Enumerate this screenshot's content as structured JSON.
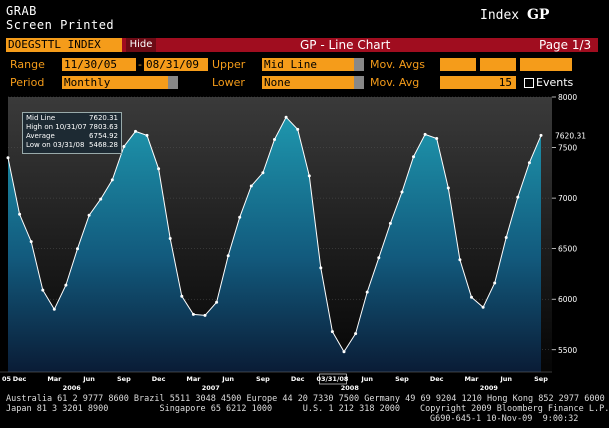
{
  "header": {
    "line1": "GRAB",
    "line2": "Screen Printed",
    "index_label": "Index",
    "function_code": "GP"
  },
  "toolbar": {
    "ticker": "DOEGSTTL INDEX",
    "hide_button": "Hide",
    "title": "GP - Line Chart",
    "page": "Page 1/3"
  },
  "controls": {
    "range_label": "Range",
    "range_start": "11/30/05",
    "range_end": "08/31/09",
    "upper_label": "Upper",
    "upper_value": "Mid Line",
    "mov_avgs_label": "Mov. Avgs",
    "period_label": "Period",
    "period_value": "Monthly",
    "lower_label": "Lower",
    "lower_value": "None",
    "mov_avg_label": "Mov. Avg",
    "mov_avg_value": "15",
    "events_label": "Events"
  },
  "stats_box": {
    "rows": [
      {
        "label": "Mid Line",
        "value": "7620.31"
      },
      {
        "label": "High on 10/31/07",
        "value": "7803.63"
      },
      {
        "label": "Average",
        "value": "6754.92"
      },
      {
        "label": "Low on 03/31/08",
        "value": "5468.28"
      }
    ]
  },
  "footer": {
    "line1": "Australia 61 2 9777 8600 Brazil 5511 3048 4500 Europe 44 20 7330 7500 Germany 49 69 9204 1210 Hong Kong 852 2977 6000",
    "line2a": "Japan 81 3 3201 8900          Singapore 65 6212 1000      U.S. 1 212 318 2000",
    "line2b": "Copyright 2009 Bloomberg Finance L.P.",
    "line3": "G690-645-1 10-Nov-09  9:00:32"
  },
  "colors": {
    "background": "#000000",
    "accent_orange": "#f59c1a",
    "title_bar_red": "#a00d1f",
    "plot_bg": "#2b2b2b",
    "area_fill_top": "#1b8aa0",
    "area_fill_bottom": "#0a1f3a",
    "line": "#ffffff"
  },
  "chart_data": {
    "type": "area",
    "series": [
      {
        "values": [
          7400,
          6840,
          6570,
          6090,
          5900,
          6140,
          6500,
          6830,
          6990,
          7180,
          7510,
          7660,
          7620,
          7290,
          6600,
          6030,
          5850,
          5840,
          5970,
          6430,
          6810,
          7120,
          7250,
          7580,
          7800,
          7680,
          7220,
          6310,
          5680,
          5480,
          5660,
          6070,
          6410,
          6750,
          7060,
          7410,
          7630,
          7590,
          7100,
          6390,
          6020,
          5920,
          6160,
          6610,
          7010,
          7350,
          7620
        ]
      }
    ],
    "x_start": "Nov 2005",
    "x_end": "Sep 2009",
    "xtick_labels": [
      "05",
      "Dec",
      "Mar",
      "Jun",
      "Sep",
      "Dec",
      "Mar",
      "Jun",
      "Sep",
      "Dec",
      "03/31/08",
      "Jun",
      "Sep",
      "Dec",
      "Mar",
      "Jun",
      "Sep"
    ],
    "year_labels": [
      "2006",
      "2007",
      "2008",
      "2009"
    ],
    "y_ticks": [
      5500,
      6000,
      6500,
      7000,
      7500,
      8000
    ],
    "ylim": [
      5280,
      8000
    ],
    "last_value_label": "7620.31",
    "grid": true
  }
}
